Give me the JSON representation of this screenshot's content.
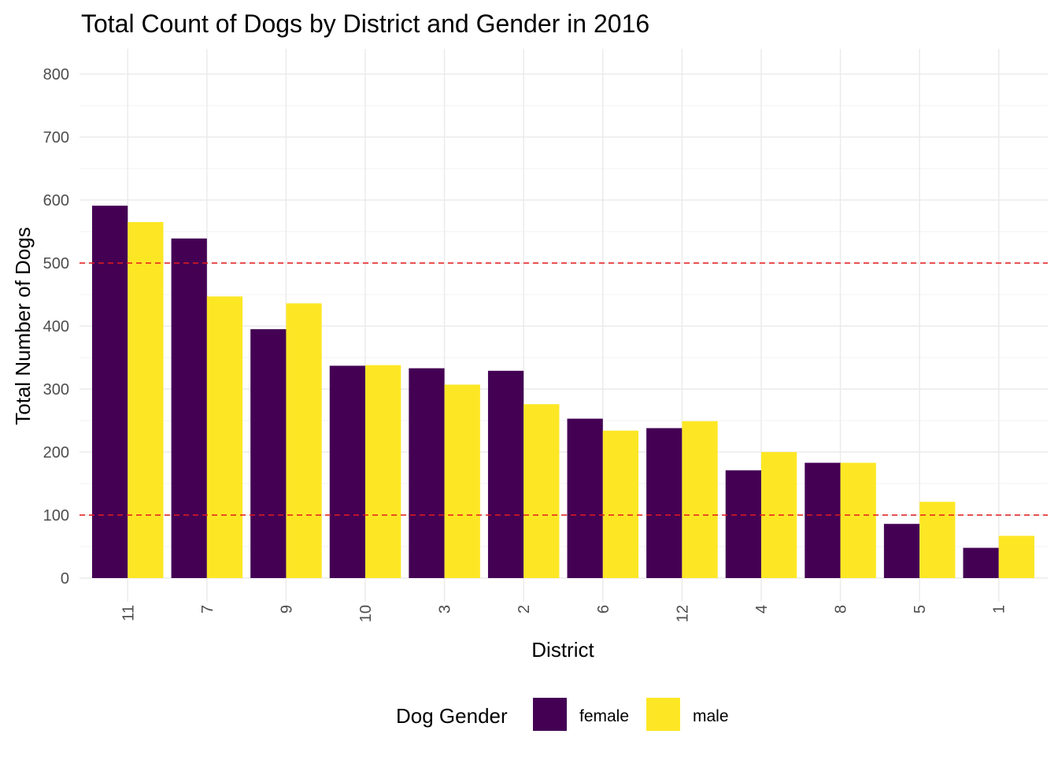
{
  "chart_data": {
    "type": "bar",
    "title": "Total Count of Dogs by District and Gender in 2016",
    "xlabel": "District",
    "ylabel": "Total Number of Dogs",
    "categories": [
      "11",
      "7",
      "9",
      "10",
      "3",
      "2",
      "6",
      "12",
      "4",
      "8",
      "5",
      "1"
    ],
    "series": [
      {
        "name": "female",
        "color": "#440154",
        "values": [
          591,
          539,
          395,
          337,
          333,
          329,
          253,
          238,
          171,
          183,
          86,
          48
        ]
      },
      {
        "name": "male",
        "color": "#FDE725",
        "values": [
          565,
          447,
          436,
          338,
          307,
          276,
          234,
          249,
          200,
          183,
          121,
          67
        ]
      }
    ],
    "ylim": [
      0,
      800
    ],
    "yticks": [
      0,
      100,
      200,
      300,
      400,
      500,
      600,
      700,
      800
    ],
    "reference_lines": [
      {
        "y": 500,
        "color": "#e41a1c",
        "style": "dashed"
      },
      {
        "y": 100,
        "color": "#e41a1c",
        "style": "dashed"
      }
    ],
    "legend": {
      "title": "Dog Gender",
      "position": "bottom"
    },
    "grid": true,
    "x_tick_rotation": "vertical"
  }
}
